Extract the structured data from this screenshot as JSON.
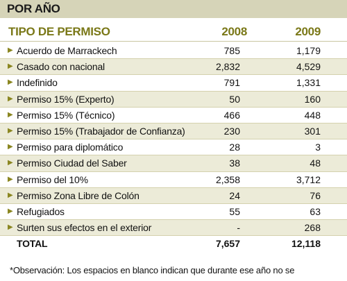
{
  "title": "POR AÑO",
  "header": {
    "label": "TIPO DE PERMISO",
    "year1": "2008",
    "year2": "2009"
  },
  "rows": [
    {
      "label": "Acuerdo de Marrackech",
      "v2008": "785",
      "v2009": "1,179"
    },
    {
      "label": "Casado con nacional",
      "v2008": "2,832",
      "v2009": "4,529"
    },
    {
      "label": "Indefinido",
      "v2008": "791",
      "v2009": "1,331"
    },
    {
      "label": "Permiso 15% (Experto)",
      "v2008": "50",
      "v2009": "160"
    },
    {
      "label": "Permiso 15% (Técnico)",
      "v2008": "466",
      "v2009": "448"
    },
    {
      "label": "Permiso 15% (Trabajador de Confianza)",
      "v2008": "230",
      "v2009": "301"
    },
    {
      "label": "Permiso para diplomático",
      "v2008": "28",
      "v2009": "3"
    },
    {
      "label": "Permiso Ciudad del Saber",
      "v2008": "38",
      "v2009": "48"
    },
    {
      "label": "Permiso del 10%",
      "v2008": "2,358",
      "v2009": "3,712"
    },
    {
      "label": "Permiso Zona Libre de Colón",
      "v2008": "24",
      "v2009": "76"
    },
    {
      "label": "Refugiados",
      "v2008": "55",
      "v2009": "63"
    },
    {
      "label": "Surten sus efectos en el exterior",
      "v2008": "-",
      "v2009": "268"
    }
  ],
  "total": {
    "label": "TOTAL",
    "v2008": "7,657",
    "v2009": "12,118"
  },
  "note": "*Observación: Los espacios en blanco indican que durante ese año no se",
  "colors": {
    "band": "#d6d4b8",
    "header_text": "#7a7818",
    "row_alt": "#ecebd8",
    "arrow": "#8a8620"
  },
  "icons": {
    "row_marker": "chevron-right-icon"
  }
}
